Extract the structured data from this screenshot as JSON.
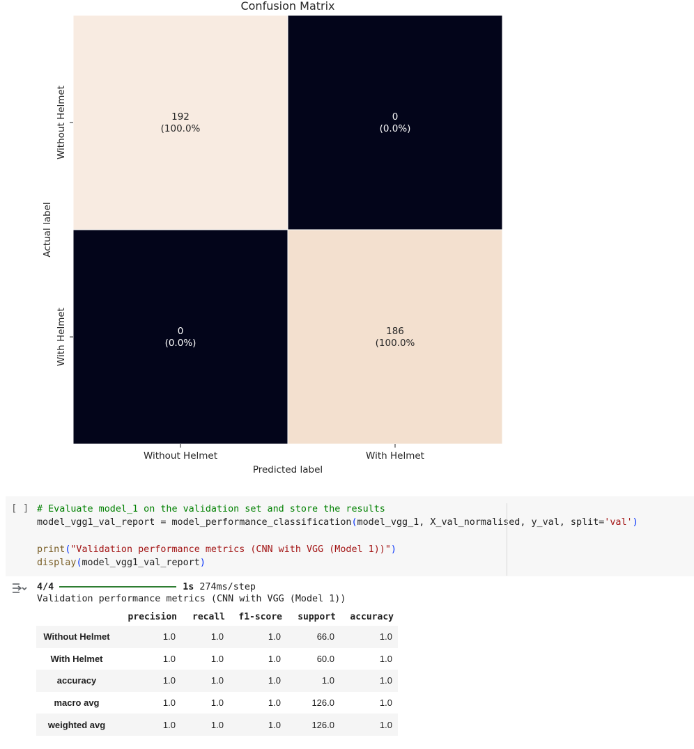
{
  "chart_data": {
    "type": "heatmap",
    "title": "Confusion Matrix",
    "xlabel": "Predicted label",
    "ylabel": "Actual label",
    "x_categories": [
      "Without Helmet",
      "With Helmet"
    ],
    "y_categories": [
      "Without Helmet",
      "With Helmet"
    ],
    "values": [
      [
        192,
        0
      ],
      [
        0,
        186
      ]
    ],
    "labels": [
      [
        "192\n(100.0%",
        "0\n(0.0%)"
      ],
      [
        "0\n(0.0%)",
        "186\n(100.0%"
      ]
    ],
    "colorbar": false,
    "colors": {
      "high_192": "#f8ebe1",
      "high_186": "#f3e0cf",
      "low": "#03051a",
      "text_light": "#ffffff",
      "text_dark": "#262626"
    }
  },
  "code_cell": {
    "run_indicator": "[ ]",
    "lines": [
      [
        {
          "t": "# Evaluate model_1 on the validation set and store the results",
          "c": "comment"
        }
      ],
      [
        {
          "t": "model_vgg1_val_report = model_performance_classification"
        },
        {
          "t": "(",
          "c": "paren"
        },
        {
          "t": "model_vgg_1, X_val_normalised, y_val, split="
        },
        {
          "t": "'val'",
          "c": "string"
        },
        {
          "t": ")",
          "c": "paren"
        }
      ],
      [
        {
          "t": ""
        }
      ],
      [
        {
          "t": "print",
          "c": "builtin"
        },
        {
          "t": "(",
          "c": "paren"
        },
        {
          "t": "\"Validation performance metrics (CNN with VGG (Model 1))\"",
          "c": "string"
        },
        {
          "t": ")",
          "c": "paren"
        }
      ],
      [
        {
          "t": "display",
          "c": "builtin"
        },
        {
          "t": "(",
          "c": "paren"
        },
        {
          "t": "model_vgg1_val_report"
        },
        {
          "t": ")",
          "c": "paren"
        }
      ]
    ]
  },
  "output": {
    "progress": {
      "step": "4/4",
      "fraction": 1.0,
      "time": "1s",
      "per_step": "274ms/step"
    },
    "print_text": "Validation performance metrics (CNN with VGG (Model 1))",
    "table": {
      "columns": [
        "precision",
        "recall",
        "f1-score",
        "support",
        "accuracy"
      ],
      "rows": [
        {
          "label": "Without Helmet",
          "values": [
            "1.0",
            "1.0",
            "1.0",
            "66.0",
            "1.0"
          ]
        },
        {
          "label": "With Helmet",
          "values": [
            "1.0",
            "1.0",
            "1.0",
            "60.0",
            "1.0"
          ]
        },
        {
          "label": "accuracy",
          "values": [
            "1.0",
            "1.0",
            "1.0",
            "1.0",
            "1.0"
          ]
        },
        {
          "label": "macro avg",
          "values": [
            "1.0",
            "1.0",
            "1.0",
            "126.0",
            "1.0"
          ]
        },
        {
          "label": "weighted avg",
          "values": [
            "1.0",
            "1.0",
            "1.0",
            "126.0",
            "1.0"
          ]
        }
      ]
    }
  },
  "icons": {
    "output_toggle": "output-toggle-icon"
  }
}
